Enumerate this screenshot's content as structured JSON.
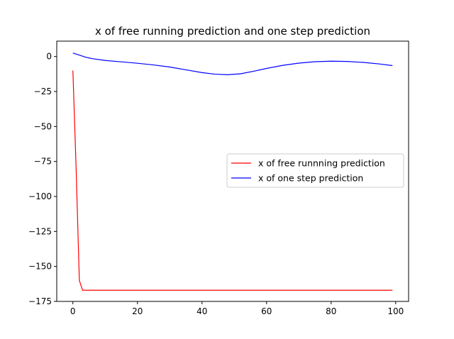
{
  "chart_data": {
    "type": "line",
    "title": "x of free running prediction and one step prediction",
    "xlabel": "",
    "ylabel": "",
    "xlim": [
      -5,
      104
    ],
    "ylim": [
      -175,
      11
    ],
    "xticks": [
      0,
      20,
      40,
      60,
      80,
      100
    ],
    "yticks": [
      0,
      -25,
      -50,
      -75,
      -100,
      -125,
      -150,
      -175
    ],
    "xtick_labels": [
      "0",
      "20",
      "40",
      "60",
      "80",
      "100"
    ],
    "ytick_labels": [
      "0",
      "−25",
      "−50",
      "−75",
      "−100",
      "−125",
      "−150",
      "−175"
    ],
    "grid": false,
    "legend_position": "center-right",
    "series": [
      {
        "name": "x of free runnning prediction",
        "color": "#ff0000",
        "x": [
          0,
          1,
          2,
          3,
          4,
          10,
          20,
          30,
          40,
          50,
          60,
          70,
          80,
          90,
          99
        ],
        "y": [
          -10,
          -80,
          -160,
          -167,
          -167,
          -167,
          -167,
          -167,
          -167,
          -167,
          -167,
          -167,
          -167,
          -167,
          -167
        ]
      },
      {
        "name": "x of one step prediction",
        "color": "#0000ff",
        "x": [
          0,
          2,
          4,
          6,
          10,
          15,
          20,
          25,
          30,
          35,
          40,
          44,
          48,
          52,
          56,
          60,
          65,
          70,
          75,
          80,
          85,
          90,
          95,
          99
        ],
        "y": [
          2.5,
          1,
          -0.5,
          -1.5,
          -2.8,
          -3.8,
          -4.8,
          -6.0,
          -7.5,
          -9.5,
          -11.5,
          -12.6,
          -13.0,
          -12.3,
          -10.5,
          -8.5,
          -6.3,
          -4.7,
          -3.7,
          -3.3,
          -3.5,
          -4.2,
          -5.3,
          -6.5
        ]
      }
    ]
  }
}
